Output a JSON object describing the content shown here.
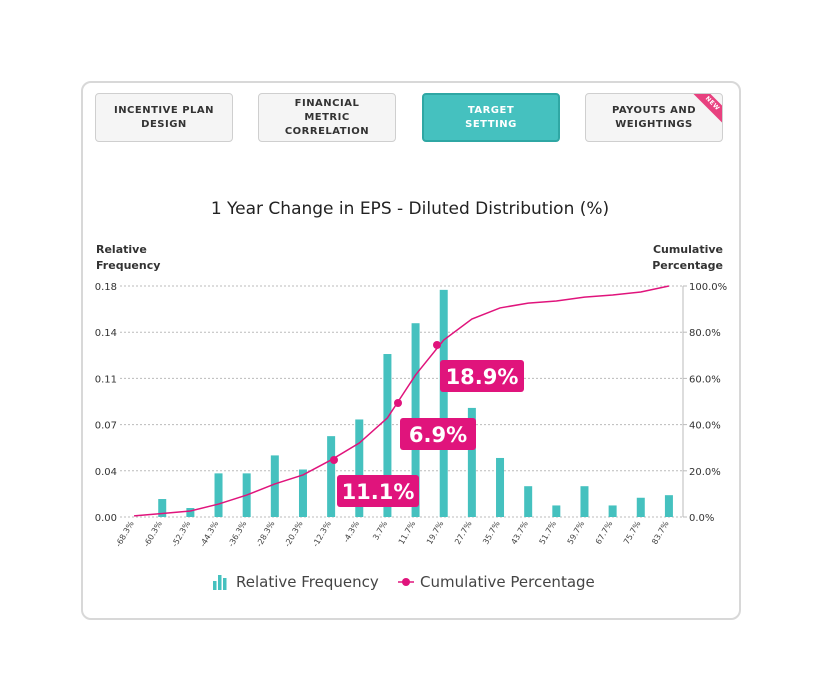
{
  "tabs": [
    {
      "label": "INCENTIVE PLAN DESIGN",
      "active": false
    },
    {
      "label": "FINANCIAL METRIC CORRELATION",
      "active": false
    },
    {
      "label": "TARGET SETTING",
      "active": true
    },
    {
      "label": "PAYOUTS AND WEIGHTINGS",
      "active": false,
      "badge": "NEW"
    }
  ],
  "chart_data": {
    "type": "bar",
    "title": "1 Year Change in EPS - Diluted Distribution (%)",
    "y_label": "Relative Frequency",
    "y2_label": "Cumulative Percentage",
    "categories": [
      "-68.3%",
      "-60.3%",
      "-52.3%",
      "-44.3%",
      "-36.3%",
      "-28.3%",
      "-20.3%",
      "-12.3%",
      "-4.3%",
      "3.7%",
      "11.7%",
      "19.7%",
      "27.7%",
      "35.7%",
      "43.7%",
      "51.7%",
      "59.7%",
      "67.7%",
      "75.7%",
      "83.7%"
    ],
    "series": [
      {
        "name": "Relative Frequency",
        "type": "bar",
        "color": "#45c1bf",
        "values": [
          0,
          0.014,
          0.007,
          0.034,
          0.034,
          0.048,
          0.037,
          0.063,
          0.076,
          0.127,
          0.151,
          0.177,
          0.085,
          0.046,
          0.024,
          0.009,
          0.024,
          0.009,
          0.015,
          0.017
        ]
      },
      {
        "name": "Cumulative Percentage",
        "type": "line",
        "axis": "y2",
        "color": "#e0147c",
        "values": [
          0.5,
          1.5,
          2.6,
          5.6,
          9.5,
          14.3,
          18.2,
          24.7,
          32,
          42.9,
          61.5,
          76.6,
          85.7,
          90.5,
          92.6,
          93.5,
          95.2,
          96.1,
          97.4,
          100
        ]
      }
    ],
    "ylim": [
      0,
      0.18
    ],
    "yticks": [
      {
        "value": 0,
        "label": "0.00"
      },
      {
        "value": 0.036,
        "label": "0.04"
      },
      {
        "value": 0.072,
        "label": "0.07"
      },
      {
        "value": 0.108,
        "label": "0.11"
      },
      {
        "value": 0.144,
        "label": "0.14"
      },
      0.18
    ],
    "y2lim": [
      0,
      100
    ],
    "y2ticks": [
      {
        "value": 0,
        "label": "0.0%"
      },
      {
        "value": 20,
        "label": "20.0%"
      },
      {
        "value": 40,
        "label": "40.0%"
      },
      {
        "value": 60,
        "label": "60.0%"
      },
      {
        "value": 80,
        "label": "80.0%"
      },
      {
        "value": 100,
        "label": "100.0%"
      }
    ],
    "grid": true,
    "annotations": [
      "18.9%",
      "6.9%",
      "11.1%"
    ]
  }
}
